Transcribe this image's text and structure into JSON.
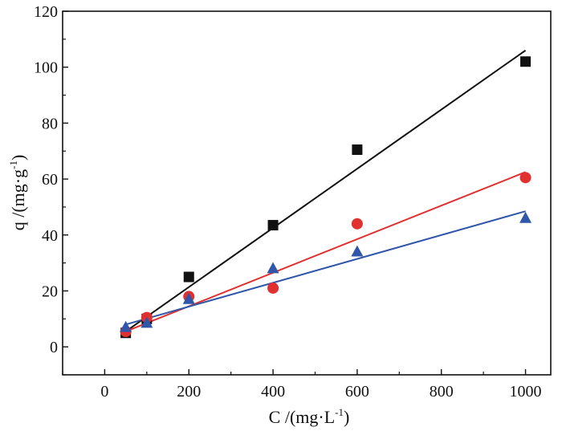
{
  "chart_data": {
    "type": "scatter",
    "title": "",
    "xlabel": {
      "base": "C /(mg·L",
      "sup": "-1",
      "close": ")"
    },
    "ylabel": {
      "base": "q /(mg·g",
      "sup": "-1",
      "close": ")"
    },
    "xlim": [
      -100,
      1060
    ],
    "ylim": [
      -10,
      120
    ],
    "xticks": [
      0,
      200,
      400,
      600,
      800,
      1000
    ],
    "yticks": [
      0,
      20,
      40,
      60,
      80,
      100,
      120
    ],
    "grid": false,
    "legend": "none",
    "series": [
      {
        "name": "series-1",
        "marker": "square",
        "color": "#111111",
        "x": [
          50,
          100,
          200,
          400,
          600,
          1000
        ],
        "y": [
          5,
          10,
          25,
          43.5,
          70.5,
          102
        ],
        "fit": {
          "x": [
            50,
            1000
          ],
          "y": [
            5.5,
            106
          ]
        }
      },
      {
        "name": "series-2",
        "marker": "circle",
        "color": "#e03030",
        "x": [
          50,
          100,
          200,
          400,
          600,
          1000
        ],
        "y": [
          5.5,
          10.5,
          18,
          21,
          44,
          60.5
        ],
        "fit": {
          "x": [
            50,
            1000
          ],
          "y": [
            5.5,
            62.5
          ]
        }
      },
      {
        "name": "series-3",
        "marker": "triangle",
        "color": "#2f56a8",
        "x": [
          50,
          100,
          200,
          400,
          600,
          1000
        ],
        "y": [
          7,
          8.5,
          17,
          28,
          34,
          46
        ],
        "fit": {
          "x": [
            50,
            1000
          ],
          "y": [
            8,
            48.5
          ]
        }
      }
    ]
  }
}
